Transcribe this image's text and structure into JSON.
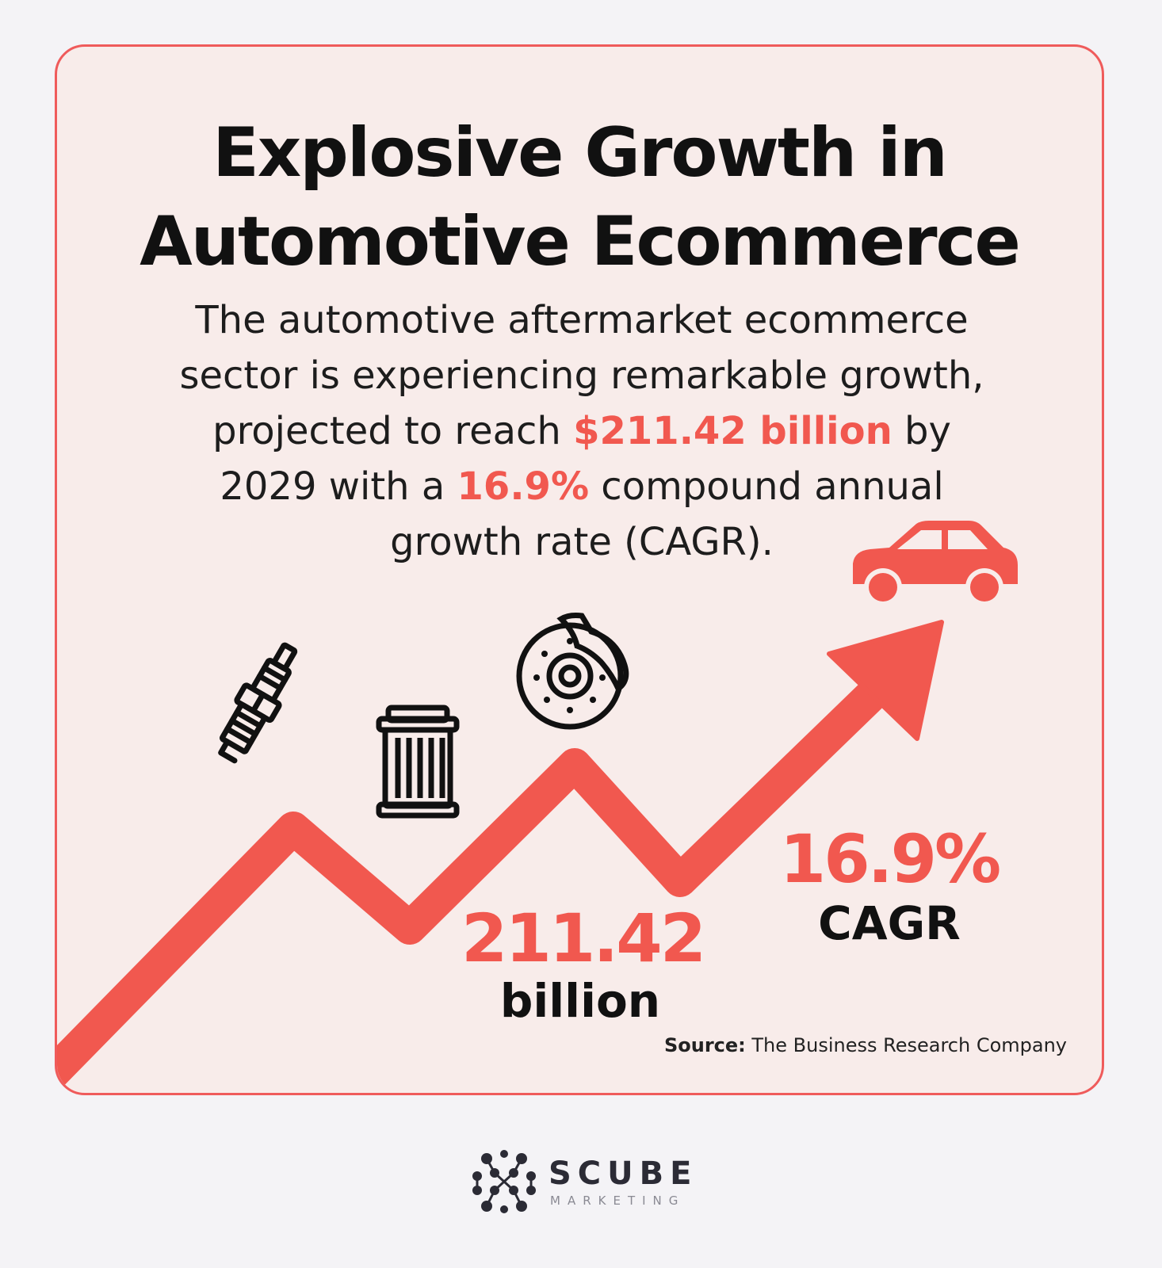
{
  "headline": {
    "line1": "Explosive Growth in",
    "line2": "Automotive Ecommerce"
  },
  "intro": {
    "part1": "The automotive aftermarket ecommerce sector is experiencing remarkable growth, projected to reach ",
    "market_value": "$211.42 billion",
    "part2": " by 2029 with a ",
    "growth_rate": "16.9%",
    "part3": " compound annual growth rate (CAGR)."
  },
  "stats": {
    "market": {
      "value": "211.42",
      "unit": "billion"
    },
    "cagr": {
      "value": "16.9%",
      "label": "CAGR"
    }
  },
  "source": {
    "label": "Source:",
    "name": " The Business Research Company"
  },
  "brand": {
    "name": "SCUBE",
    "tagline": "MARKETING"
  },
  "icons": [
    "spark-plug-icon",
    "air-filter-icon",
    "brake-disc-icon",
    "car-icon",
    "growth-arrow-icon"
  ],
  "colors": {
    "accent": "#f1584f",
    "card_border": "#ef5b5b",
    "card_background": "#f8ecea",
    "page_background": "#f4f3f6",
    "text": "#111111"
  }
}
